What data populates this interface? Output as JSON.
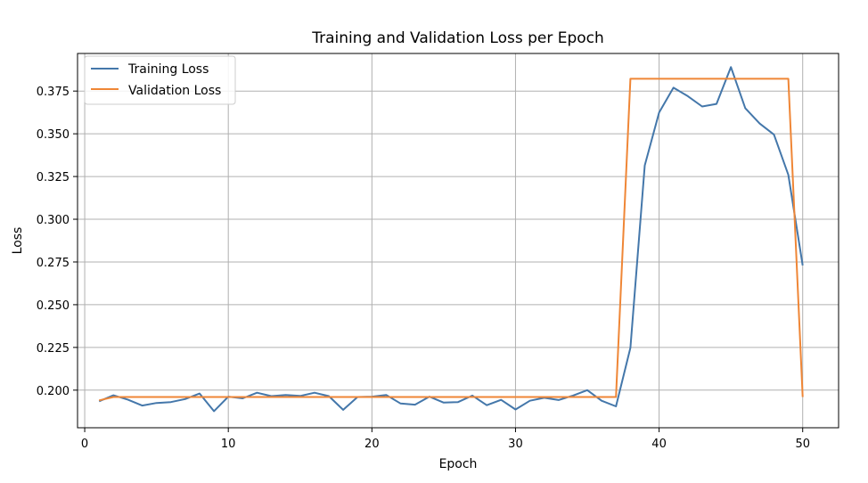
{
  "chart_data": {
    "type": "line",
    "title": "Training and Validation Loss per Epoch",
    "xlabel": "Epoch",
    "ylabel": "Loss",
    "xlim": [
      -0.5,
      52.5
    ],
    "ylim": [
      0.178,
      0.397
    ],
    "xticks": [
      0,
      10,
      20,
      30,
      40,
      50
    ],
    "yticks": [
      0.2,
      0.225,
      0.25,
      0.275,
      0.3,
      0.325,
      0.35,
      0.375
    ],
    "ytick_labels": [
      "0.200",
      "0.225",
      "0.250",
      "0.275",
      "0.300",
      "0.325",
      "0.350",
      "0.375"
    ],
    "grid": true,
    "legend_position": "top-left",
    "x": [
      1,
      2,
      3,
      4,
      5,
      6,
      7,
      8,
      9,
      10,
      11,
      12,
      13,
      14,
      15,
      16,
      17,
      18,
      19,
      20,
      21,
      22,
      23,
      24,
      25,
      26,
      27,
      28,
      29,
      30,
      31,
      32,
      33,
      34,
      35,
      36,
      37,
      38,
      39,
      40,
      41,
      42,
      43,
      44,
      45,
      46,
      47,
      48,
      49,
      50
    ],
    "series": [
      {
        "name": "Training Loss",
        "color": "#4477aa",
        "values": [
          0.1935,
          0.197,
          0.1945,
          0.191,
          0.1925,
          0.193,
          0.1948,
          0.198,
          0.1877,
          0.1962,
          0.1952,
          0.1985,
          0.1965,
          0.1972,
          0.1966,
          0.1985,
          0.1965,
          0.1885,
          0.196,
          0.1962,
          0.1972,
          0.1922,
          0.1915,
          0.1962,
          0.1927,
          0.193,
          0.1968,
          0.1912,
          0.1943,
          0.1887,
          0.1938,
          0.1955,
          0.1942,
          0.1968,
          0.2,
          0.1938,
          0.1905,
          0.2248,
          0.3315,
          0.3625,
          0.377,
          0.372,
          0.366,
          0.3675,
          0.389,
          0.365,
          0.356,
          0.3495,
          0.326,
          0.273
        ]
      },
      {
        "name": "Validation Loss",
        "color": "#ef8636",
        "values": [
          0.194,
          0.196,
          0.196,
          0.196,
          0.196,
          0.196,
          0.196,
          0.196,
          0.196,
          0.196,
          0.196,
          0.196,
          0.196,
          0.196,
          0.196,
          0.196,
          0.196,
          0.196,
          0.196,
          0.196,
          0.196,
          0.196,
          0.196,
          0.196,
          0.196,
          0.196,
          0.196,
          0.196,
          0.196,
          0.196,
          0.196,
          0.196,
          0.196,
          0.196,
          0.196,
          0.196,
          0.196,
          0.3822,
          0.3822,
          0.3822,
          0.3822,
          0.3822,
          0.3822,
          0.3822,
          0.3822,
          0.3822,
          0.3822,
          0.3822,
          0.3822,
          0.196
        ]
      }
    ]
  }
}
